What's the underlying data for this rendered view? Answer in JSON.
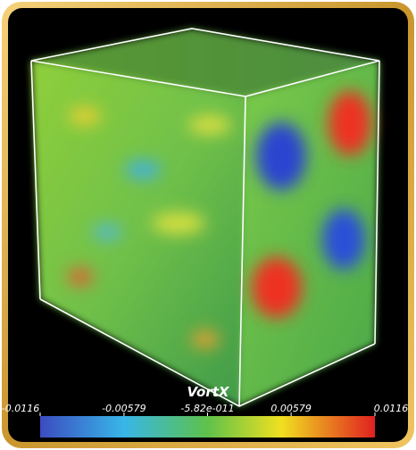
{
  "colorbar": {
    "title": "VortX",
    "range": [
      -0.0116,
      0.0116
    ],
    "ticks": [
      -0.0116,
      -0.00579,
      {
        "value": -5.82e-11,
        "label": "-5.82e-011"
      },
      0.00579,
      0.0116
    ]
  }
}
